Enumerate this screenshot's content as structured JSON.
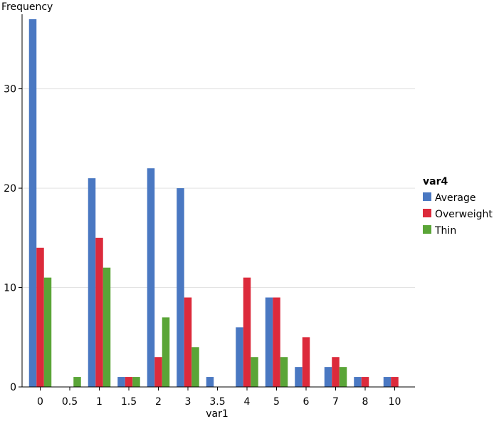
{
  "chart_data": {
    "type": "bar",
    "title": "",
    "xlabel": "var1",
    "ylabel": "Frequency",
    "ylim": [
      0,
      37.5
    ],
    "yticks": [
      0,
      10,
      20,
      30
    ],
    "grid": true,
    "categories": [
      "0",
      "0.5",
      "1",
      "1.5",
      "2",
      "3",
      "3.5",
      "4",
      "5",
      "6",
      "7",
      "8",
      "10"
    ],
    "legend": {
      "title": "var4",
      "placement": "right"
    },
    "series": [
      {
        "name": "Average",
        "color": "#4a78c2",
        "values": [
          37,
          0,
          21,
          1,
          22,
          20,
          1,
          6,
          9,
          2,
          2,
          1,
          1
        ]
      },
      {
        "name": "Overweight",
        "color": "#dc2a3b",
        "values": [
          14,
          0,
          15,
          1,
          3,
          9,
          0,
          11,
          9,
          5,
          3,
          1,
          1
        ]
      },
      {
        "name": "Thin",
        "color": "#5aa537",
        "values": [
          11,
          1,
          12,
          1,
          7,
          4,
          0,
          3,
          3,
          0,
          2,
          0,
          0
        ]
      }
    ]
  }
}
